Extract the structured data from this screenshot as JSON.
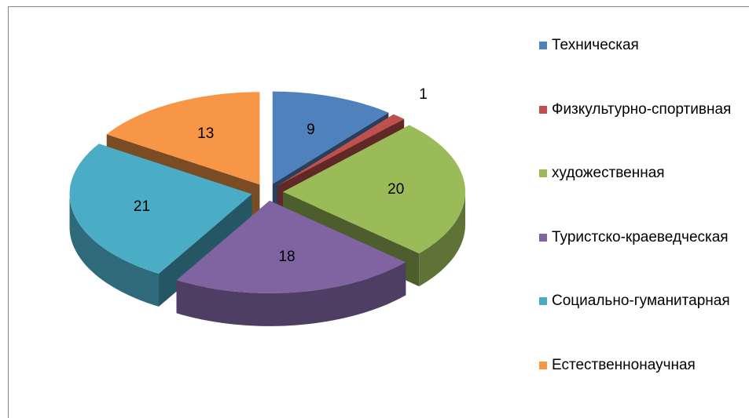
{
  "chart_data": {
    "type": "pie",
    "categories": [
      "Техническая",
      "Физкультурно-спортивная",
      "художественная",
      "Туристско-краеведческая",
      "Социально-гуманитарная",
      "Естественнонаучная"
    ],
    "values": [
      9,
      1,
      20,
      18,
      21,
      13
    ],
    "colors": [
      "#4f81bd",
      "#c0504d",
      "#9bbb59",
      "#8064a2",
      "#4bacc6",
      "#f79646"
    ],
    "legend": "right"
  }
}
